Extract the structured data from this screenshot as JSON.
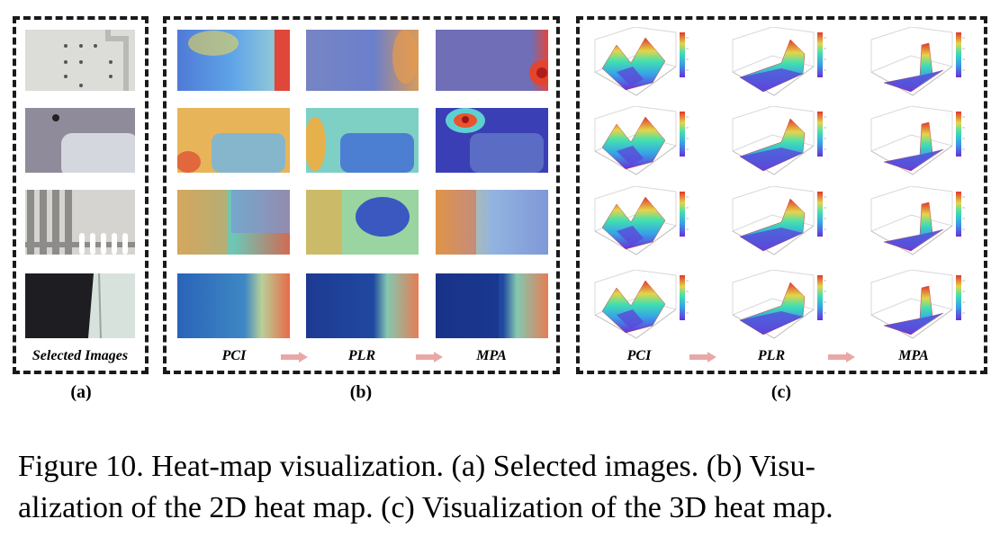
{
  "panel_a": {
    "row_label": "Selected Images",
    "letter": "(a)"
  },
  "panel_b": {
    "methods": [
      "PCI",
      "PLR",
      "MPA"
    ],
    "letter": "(b)"
  },
  "panel_c": {
    "methods": [
      "PCI",
      "PLR",
      "MPA"
    ],
    "letter": "(c)"
  },
  "caption": {
    "line1": "Figure 10. Heat-map visualization. (a) Selected images. (b) Visu-",
    "line2": "alization of the 2D heat map. (c) Visualization of the 3D heat map."
  },
  "colors": {
    "arrow": "#e9a8a8",
    "dash": "#1a1a1a"
  }
}
